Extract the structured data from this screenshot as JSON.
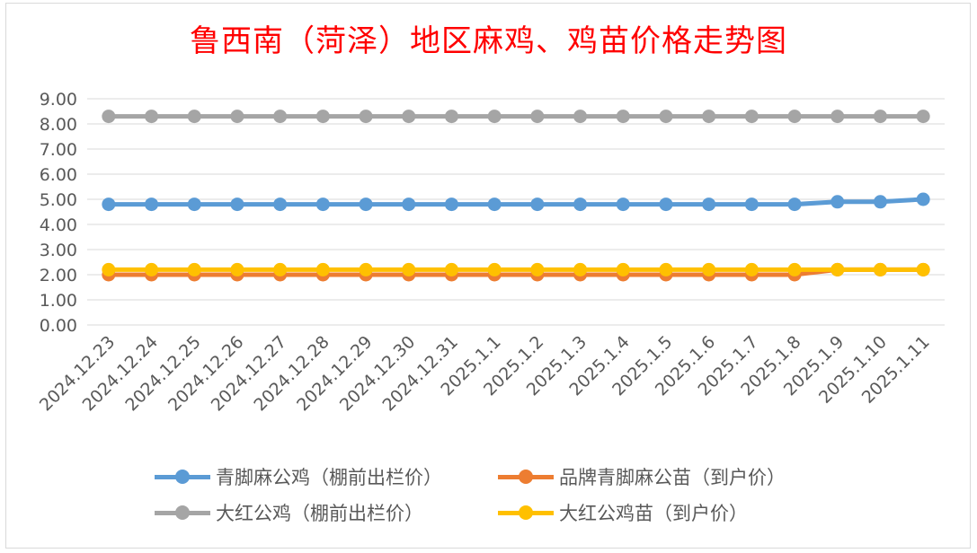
{
  "chart_data": {
    "type": "line",
    "title": "鲁西南（菏泽）地区麻鸡、鸡苗价格走势图",
    "categories": [
      "2024.12.23",
      "2024.12.24",
      "2024.12.25",
      "2024.12.26",
      "2024.12.27",
      "2024.12.28",
      "2024.12.29",
      "2024.12.30",
      "2024.12.31",
      "2025.1.1",
      "2025.1.2",
      "2025.1.3",
      "2025.1.4",
      "2025.1.5",
      "2025.1.6",
      "2025.1.7",
      "2025.1.8",
      "2025.1.9",
      "2025.1.10",
      "2025.1.11"
    ],
    "ylim": [
      0,
      9
    ],
    "yticks": [
      "0.00",
      "1.00",
      "2.00",
      "3.00",
      "4.00",
      "5.00",
      "6.00",
      "7.00",
      "8.00",
      "9.00"
    ],
    "grid": true,
    "legend_position": "bottom",
    "series": [
      {
        "name": "青脚麻公鸡（棚前出栏价）",
        "color": "#5b9bd5",
        "values": [
          4.8,
          4.8,
          4.8,
          4.8,
          4.8,
          4.8,
          4.8,
          4.8,
          4.8,
          4.8,
          4.8,
          4.8,
          4.8,
          4.8,
          4.8,
          4.8,
          4.8,
          4.9,
          4.9,
          5.0
        ]
      },
      {
        "name": "品牌青脚麻公苗（到户价）",
        "color": "#ed7d31",
        "values": [
          2.0,
          2.0,
          2.0,
          2.0,
          2.0,
          2.0,
          2.0,
          2.0,
          2.0,
          2.0,
          2.0,
          2.0,
          2.0,
          2.0,
          2.0,
          2.0,
          2.0,
          2.2,
          2.2,
          2.2
        ]
      },
      {
        "name": "大红公鸡（棚前出栏价）",
        "color": "#a5a5a5",
        "values": [
          8.3,
          8.3,
          8.3,
          8.3,
          8.3,
          8.3,
          8.3,
          8.3,
          8.3,
          8.3,
          8.3,
          8.3,
          8.3,
          8.3,
          8.3,
          8.3,
          8.3,
          8.3,
          8.3,
          8.3
        ]
      },
      {
        "name": "大红公鸡苗（到户价）",
        "color": "#ffc000",
        "values": [
          2.2,
          2.2,
          2.2,
          2.2,
          2.2,
          2.2,
          2.2,
          2.2,
          2.2,
          2.2,
          2.2,
          2.2,
          2.2,
          2.2,
          2.2,
          2.2,
          2.2,
          2.2,
          2.2,
          2.2
        ]
      }
    ]
  }
}
